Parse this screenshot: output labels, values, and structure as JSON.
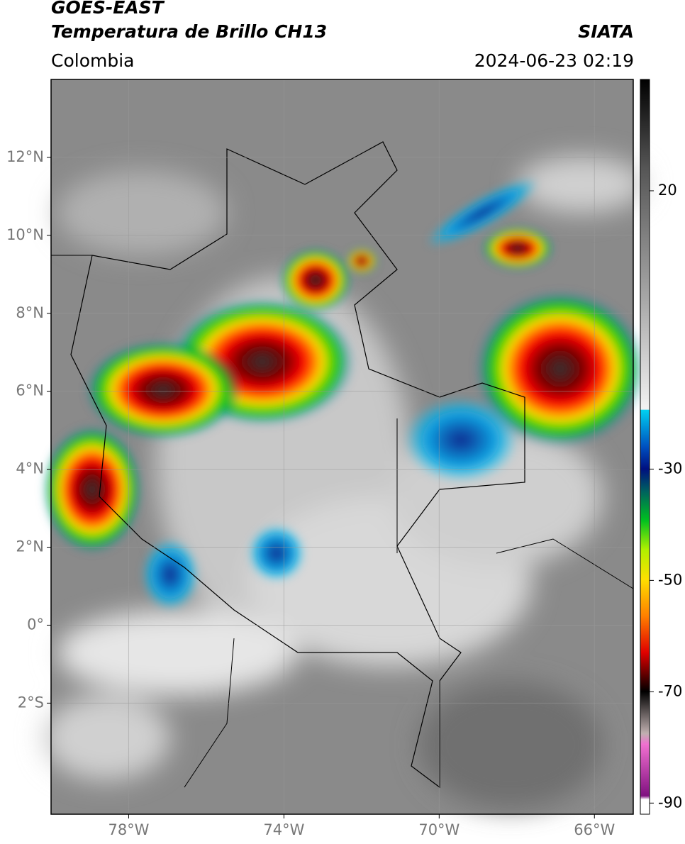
{
  "header": {
    "title": "GOES-EAST",
    "subtitle": "Temperatura de Brillo CH13",
    "region": "Colombia",
    "source": "SIATA",
    "timestamp": "2024-06-23 02:19"
  },
  "map": {
    "xlim": [
      -80,
      -65
    ],
    "ylim": [
      -4.85,
      14
    ],
    "xticks": [
      {
        "value": -78,
        "label": "78°W"
      },
      {
        "value": -74,
        "label": "74°W"
      },
      {
        "value": -70,
        "label": "70°W"
      },
      {
        "value": -66,
        "label": "66°W"
      }
    ],
    "yticks": [
      {
        "value": 12,
        "label": "12°N"
      },
      {
        "value": 10,
        "label": "10°N"
      },
      {
        "value": 8,
        "label": "8°N"
      },
      {
        "value": 6,
        "label": "6°N"
      },
      {
        "value": 4,
        "label": "4°N"
      },
      {
        "value": 2,
        "label": "2°N"
      },
      {
        "value": 0,
        "label": "0°"
      },
      {
        "value": -2,
        "label": "2°S"
      }
    ],
    "grid": true
  },
  "colorbar": {
    "lim": [
      -92,
      40
    ],
    "ticks": [
      20,
      -30,
      -50,
      -70,
      -90
    ]
  }
}
